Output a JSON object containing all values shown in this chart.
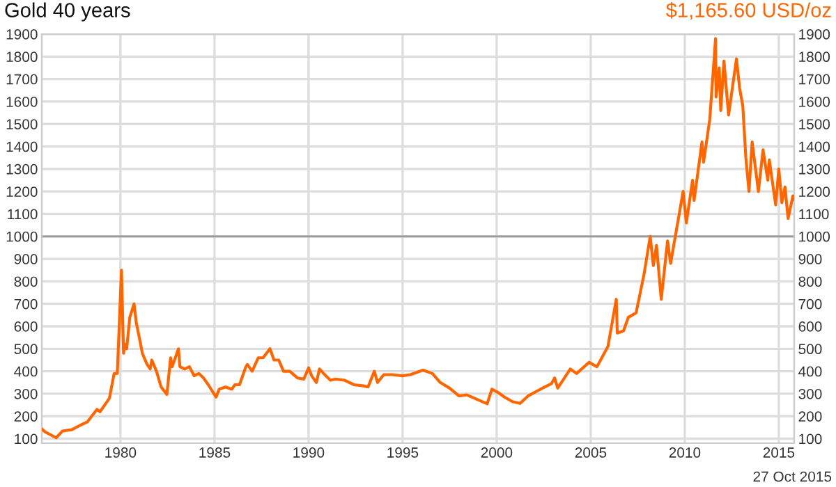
{
  "chart_data": {
    "type": "line",
    "title": "Gold 40 years",
    "subtitle": "$1,165.60 USD/oz",
    "annotations": [
      "27 Oct 2015"
    ],
    "x": [
      "1975-11",
      "1976-01",
      "1976-08",
      "1976-12",
      "1977-06",
      "1977-12",
      "1978-04",
      "1978-10",
      "1978-12",
      "1979-06",
      "1979-09",
      "1979-11",
      "1980-01-21",
      "1980-03",
      "1980-04",
      "1980-05",
      "1980-07",
      "1980-09-22",
      "1980-11",
      "1981-01",
      "1981-03",
      "1981-06",
      "1981-08",
      "1981-09",
      "1981-12",
      "1982-03",
      "1982-06-21",
      "1982-09",
      "1982-10",
      "1983-02",
      "1983-03",
      "1983-06",
      "1983-09",
      "1983-12",
      "1984-03",
      "1984-06",
      "1984-09",
      "1985-02",
      "1985-04",
      "1985-08",
      "1985-12",
      "1986-02",
      "1986-05",
      "1986-09",
      "1986-10",
      "1987-01",
      "1987-05",
      "1987-08",
      "1987-12-14",
      "1988-03",
      "1988-06",
      "1988-09",
      "1989-01",
      "1989-06",
      "1989-10",
      "1990-01",
      "1990-03",
      "1990-06",
      "1990-08",
      "1990-12",
      "1991-03",
      "1991-06",
      "1991-12",
      "1992-06",
      "1992-12",
      "1993-03",
      "1993-07",
      "1993-09",
      "1994-01",
      "1994-06",
      "1995-01",
      "1995-06",
      "1996-02",
      "1996-08",
      "1997-01",
      "1997-07",
      "1998-01",
      "1998-06",
      "1999-07",
      "1999-10",
      "2000-02",
      "2000-06",
      "2000-11",
      "2001-04",
      "2001-09",
      "2002-05",
      "2002-12",
      "2003-02",
      "2003-04",
      "2003-12",
      "2004-04",
      "2004-12",
      "2005-05",
      "2005-12",
      "2006-05-12",
      "2006-06",
      "2006-10",
      "2007-01",
      "2007-06",
      "2007-11",
      "2008-03",
      "2008-05",
      "2008-07",
      "2008-10",
      "2009-02",
      "2009-04",
      "2009-12",
      "2010-02",
      "2010-06",
      "2010-07",
      "2010-12",
      "2011-01",
      "2011-05",
      "2011-08-22",
      "2011-09",
      "2011-11",
      "2011-12",
      "2012-02",
      "2012-05",
      "2012-10",
      "2012-12",
      "2013-02",
      "2013-04",
      "2013-06",
      "2013-08",
      "2013-12",
      "2014-03",
      "2014-06",
      "2014-07",
      "2014-11",
      "2015-01",
      "2015-03",
      "2015-05",
      "2015-07",
      "2015-10",
      "2015-10-27"
    ],
    "series": [
      {
        "color": "#ff6600",
        "values": [
          142,
          130,
          104,
          134,
          140,
          162,
          175,
          230,
          220,
          280,
          390,
          390,
          850,
          480,
          520,
          500,
          640,
          700,
          620,
          550,
          480,
          430,
          410,
          450,
          400,
          330,
          297,
          460,
          420,
          500,
          420,
          410,
          420,
          380,
          390,
          370,
          340,
          285,
          320,
          330,
          320,
          340,
          340,
          420,
          430,
          400,
          460,
          460,
          500,
          450,
          450,
          400,
          400,
          370,
          365,
          415,
          380,
          350,
          410,
          380,
          360,
          365,
          360,
          340,
          335,
          330,
          400,
          350,
          385,
          385,
          380,
          385,
          405,
          390,
          350,
          325,
          290,
          295,
          255,
          320,
          305,
          285,
          265,
          257,
          290,
          320,
          345,
          370,
          325,
          410,
          390,
          440,
          420,
          510,
          720,
          570,
          580,
          640,
          660,
          830,
          1000,
          870,
          960,
          720,
          980,
          880,
          1200,
          1060,
          1250,
          1160,
          1420,
          1330,
          1520,
          1880,
          1620,
          1750,
          1560,
          1780,
          1540,
          1790,
          1660,
          1580,
          1350,
          1200,
          1420,
          1200,
          1385,
          1250,
          1340,
          1140,
          1300,
          1150,
          1220,
          1080,
          1180,
          1165
        ]
      }
    ],
    "xlim": [
      "1975-10-27",
      "2015-10-27"
    ],
    "xticks": [
      "1980",
      "1985",
      "1990",
      "1995",
      "2000",
      "2005",
      "2010",
      "2015"
    ],
    "ylim": [
      80,
      1900
    ],
    "yticks": [
      100,
      200,
      300,
      400,
      500,
      600,
      700,
      800,
      900,
      1000,
      1100,
      1200,
      1300,
      1400,
      1500,
      1600,
      1700,
      1800,
      1900
    ],
    "y2lim": [
      80,
      1900
    ],
    "y2ticks": [
      100,
      200,
      300,
      400,
      500,
      600,
      700,
      800,
      900,
      1000,
      1100,
      1200,
      1300,
      1400,
      1500,
      1600,
      1700,
      1800,
      1900
    ],
    "ref_lines": [
      {
        "axis": "y",
        "value": 1000,
        "color": "#999999"
      }
    ],
    "grid": true,
    "marker": "none",
    "line_style": "solid"
  }
}
